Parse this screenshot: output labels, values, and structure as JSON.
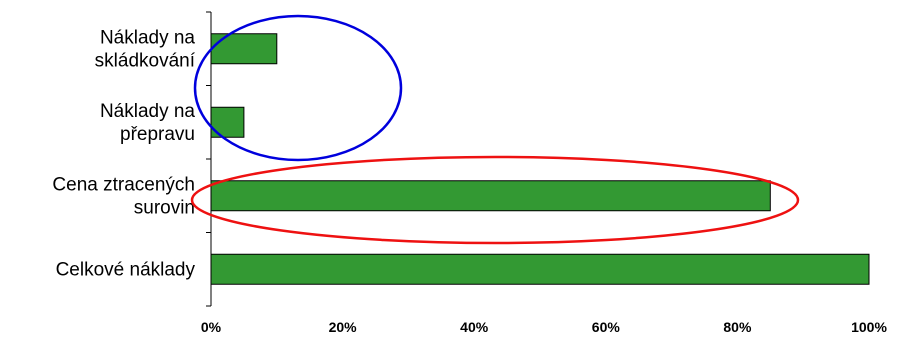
{
  "chart_data": {
    "type": "bar",
    "orientation": "horizontal",
    "categories": [
      [
        "Náklady na",
        "skládkování"
      ],
      [
        "Náklady na",
        "přepravu"
      ],
      [
        "Cena ztracených",
        "surovin"
      ],
      [
        "Celkové náklady"
      ]
    ],
    "values": [
      10,
      5,
      85,
      100
    ],
    "xlim": [
      0,
      100
    ],
    "xticks": [
      "0%",
      "20%",
      "40%",
      "60%",
      "80%",
      "100%"
    ],
    "title": "",
    "xlabel": "",
    "ylabel": "",
    "grid": false,
    "bar_color": "#339933",
    "annotations": [
      {
        "shape": "ellipse",
        "color": "#0000dd",
        "encloses": [
          "Náklady na skládkování",
          "Náklady na přepravu"
        ]
      },
      {
        "shape": "ellipse",
        "color": "#ee1111",
        "encloses": [
          "Cena ztracených surovin"
        ]
      }
    ]
  }
}
